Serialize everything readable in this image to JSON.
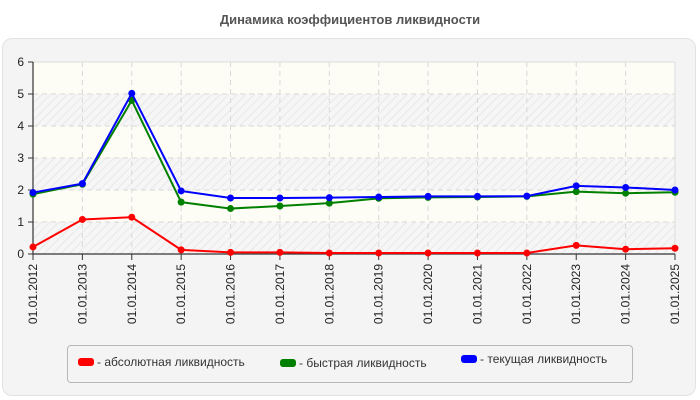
{
  "chart_data": {
    "type": "line",
    "title": "Динамика коэффициентов ликвидности",
    "xlabel": "",
    "ylabel": "",
    "ylim": [
      0,
      6
    ],
    "yticks": [
      0,
      1,
      2,
      3,
      4,
      5,
      6
    ],
    "grid": true,
    "legend_position": "bottom",
    "categories": [
      "01.01.2012",
      "01.01.2013",
      "01.01.2014",
      "01.01.2015",
      "01.01.2016",
      "01.01.2017",
      "01.01.2018",
      "01.01.2019",
      "01.01.2020",
      "01.01.2021",
      "01.01.2022",
      "01.01.2023",
      "01.01.2024",
      "01.01.2025"
    ],
    "series": [
      {
        "name": "абсолютная ликвидность",
        "color": "#ff0000",
        "values": [
          0.22,
          1.08,
          1.15,
          0.13,
          0.05,
          0.05,
          0.03,
          0.03,
          0.03,
          0.03,
          0.03,
          0.27,
          0.15,
          0.18
        ]
      },
      {
        "name": "быстрая ликвидность",
        "color": "#008000",
        "values": [
          1.87,
          2.18,
          4.8,
          1.62,
          1.42,
          1.5,
          1.59,
          1.74,
          1.77,
          1.78,
          1.8,
          1.95,
          1.9,
          1.93
        ]
      },
      {
        "name": "текущая ликвидность",
        "color": "#0000ff",
        "values": [
          1.92,
          2.2,
          5.02,
          1.97,
          1.75,
          1.75,
          1.76,
          1.78,
          1.8,
          1.8,
          1.81,
          2.13,
          2.08,
          2.0
        ]
      }
    ]
  },
  "legend": {
    "items": [
      {
        "label": "- абсолютная ликвидность",
        "color": "#ff0000"
      },
      {
        "label": "- быстрая ликвидность",
        "color": "#008000"
      },
      {
        "label": "- текущая ликвидность",
        "color": "#0000ff"
      }
    ]
  }
}
